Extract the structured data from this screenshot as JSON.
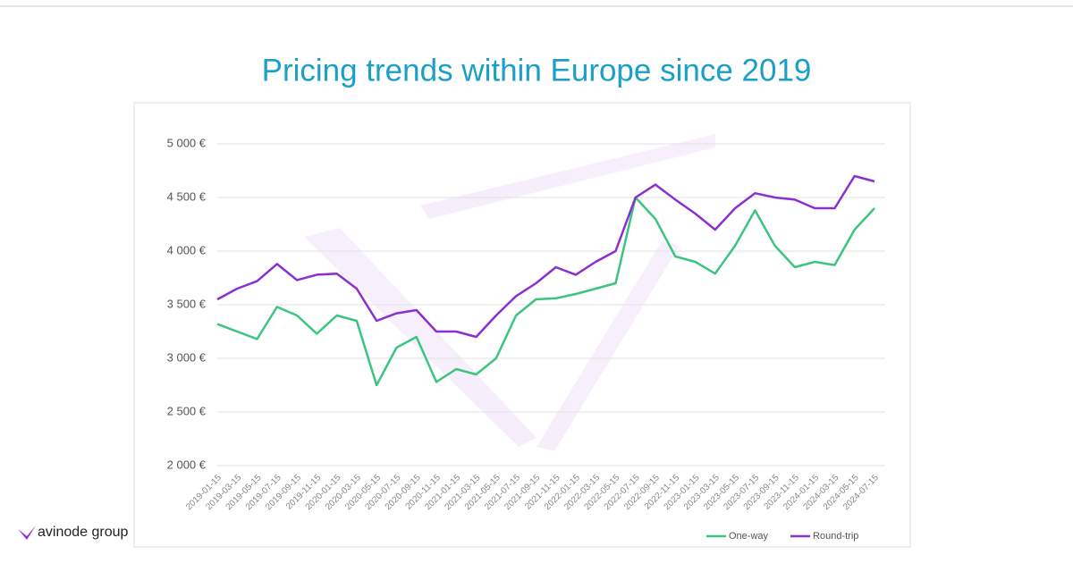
{
  "brand": "avinode group",
  "chart_data": {
    "type": "line",
    "title": "Pricing trends within Europe since 2019",
    "categories": [
      "2019-01-15",
      "2019-03-15",
      "2019-05-15",
      "2019-07-15",
      "2019-09-15",
      "2019-11-15",
      "2020-01-15",
      "2020-03-15",
      "2020-05-15",
      "2020-07-15",
      "2020-09-15",
      "2020-11-15",
      "2021-01-15",
      "2021-03-15",
      "2021-05-15",
      "2021-07-15",
      "2021-09-15",
      "2021-11-15",
      "2022-01-15",
      "2022-03-15",
      "2022-05-15",
      "2022-07-15",
      "2022-09-15",
      "2022-11-15",
      "2023-01-15",
      "2023-03-15",
      "2023-05-15",
      "2023-07-15",
      "2023-09-15",
      "2023-11-15",
      "2024-01-15",
      "2024-03-15",
      "2024-05-15",
      "2024-07-15"
    ],
    "series": [
      {
        "name": "One-way",
        "color": "#3cc480",
        "values": [
          3320,
          3250,
          3180,
          3480,
          3400,
          3230,
          3400,
          3350,
          2750,
          3100,
          3200,
          2780,
          2900,
          2850,
          3000,
          3400,
          3550,
          3560,
          3600,
          3650,
          3700,
          4500,
          4300,
          3950,
          3900,
          3790,
          4050,
          4380,
          4050,
          3850,
          3900,
          3870,
          4200,
          4400
        ]
      },
      {
        "name": "Round-trip",
        "color": "#8b2fd0",
        "values": [
          3550,
          3650,
          3720,
          3880,
          3730,
          3780,
          3790,
          3650,
          3350,
          3420,
          3450,
          3250,
          3250,
          3200,
          3400,
          3580,
          3700,
          3850,
          3780,
          3900,
          4000,
          4500,
          4620,
          4480,
          4350,
          4200,
          4400,
          4540,
          4500,
          4480,
          4400,
          4400,
          4700,
          4650
        ]
      }
    ],
    "ylim": [
      2000,
      5000
    ],
    "yticks": [
      {
        "value": 2000,
        "label": "2 000 €"
      },
      {
        "value": 2500,
        "label": "2 500 €"
      },
      {
        "value": 3000,
        "label": "3 000 €"
      },
      {
        "value": 3500,
        "label": "3 500 €"
      },
      {
        "value": 4000,
        "label": "4 000 €"
      },
      {
        "value": 4500,
        "label": "4 500 €"
      },
      {
        "value": 5000,
        "label": "5 000 €"
      }
    ],
    "grid": true,
    "legend": "bottom-right"
  }
}
